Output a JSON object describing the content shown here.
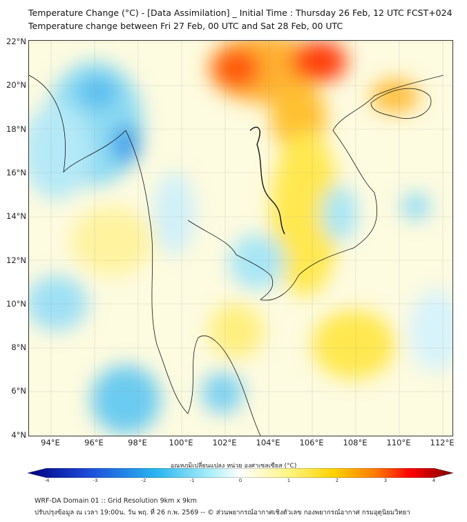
{
  "title": {
    "line1": "Temperature Change (°C) - [Data Assimilation] _ Initial Time : Thursday 26 Feb, 12 UTC FCST+024",
    "line2": "Temperature change between Fri 27 Feb, 00 UTC and Sat 28 Feb, 00 UTC"
  },
  "axes": {
    "x_ticks": [
      "94°E",
      "96°E",
      "98°E",
      "100°E",
      "102°E",
      "104°E",
      "106°E",
      "108°E",
      "110°E",
      "112°E"
    ],
    "y_ticks": [
      "22°N",
      "20°N",
      "18°N",
      "16°N",
      "14°N",
      "12°N",
      "10°N",
      "8°N",
      "6°N",
      "4°N"
    ]
  },
  "colorbar": {
    "label": "อุณหภูมิเปลี่ยนแปลง หน่วย องศาเซลเซียส (°C)",
    "ticks": [
      "-4",
      "-3",
      "-2",
      "-1",
      "0",
      "1",
      "2",
      "3",
      "4"
    ],
    "range": [
      -4,
      4
    ],
    "colors": {
      "min": "#000080",
      "cold": "#1e64e6",
      "cool": "#5ad2f0",
      "neutral": "#ffffff",
      "warm": "#fff060",
      "hot": "#ff8c00",
      "max": "#800000"
    }
  },
  "footer": {
    "line1": "WRF-DA Domain 01 :: Grid Resolution 9km x 9km",
    "line2": "ปรับปรุงข้อมูล ณ เวลา 19:00น. วัน พฤ. ที่ 26 ก.พ. 2569 -- © ส่วนพยากรณ์อากาศเชิงตัวเลข กองพยากรณ์อากาศ กรมอุตุนิยมวิทยา"
  }
}
